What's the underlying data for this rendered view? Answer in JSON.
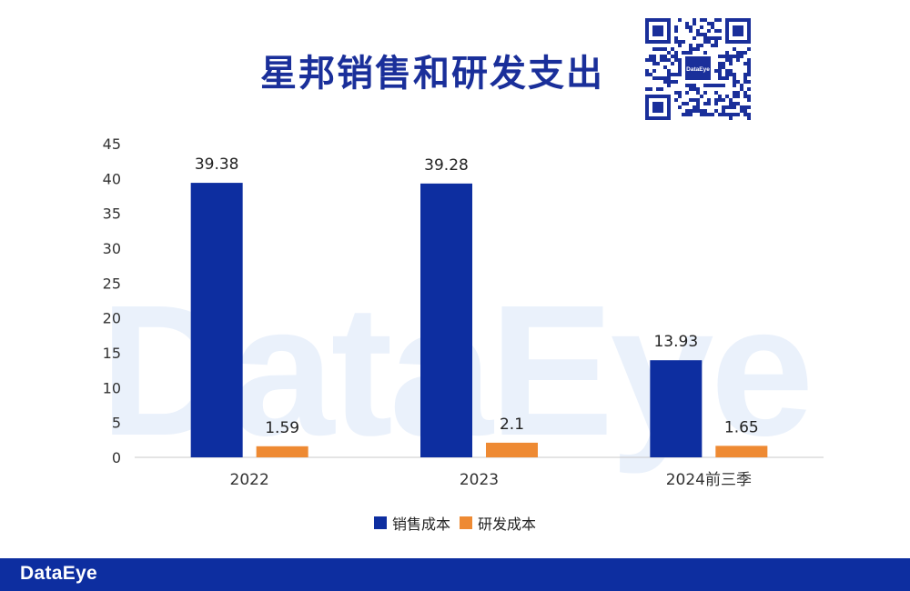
{
  "header": {
    "title": "星邦销售和研发支出"
  },
  "brand": {
    "logo_text": "DataEye",
    "qr_center_text": "DataEye",
    "watermark_text": "DataEye"
  },
  "colors": {
    "title": "#1a2f9a",
    "series_sales": "#0d2ea0",
    "series_rd": "#ee8a33",
    "footer_bg": "#0d2ea0",
    "watermark": "#eaf1fb"
  },
  "chart_data": {
    "type": "bar",
    "title": "星邦销售和研发支出",
    "categories": [
      "2022",
      "2023",
      "2024前三季"
    ],
    "series": [
      {
        "name": "销售成本",
        "values": [
          39.38,
          39.28,
          13.93
        ],
        "labels": [
          "39.38",
          "39.28",
          "13.93"
        ]
      },
      {
        "name": "研发成本",
        "values": [
          1.59,
          2.1,
          1.65
        ],
        "labels": [
          "1.59",
          "2.1",
          "1.65"
        ]
      }
    ],
    "ylim": [
      0,
      45
    ],
    "yticks": [
      "0",
      "5",
      "10",
      "15",
      "20",
      "25",
      "30",
      "35",
      "40",
      "45"
    ],
    "xlabel": "",
    "ylabel": "",
    "grid": false,
    "legend": "bottom-center"
  }
}
